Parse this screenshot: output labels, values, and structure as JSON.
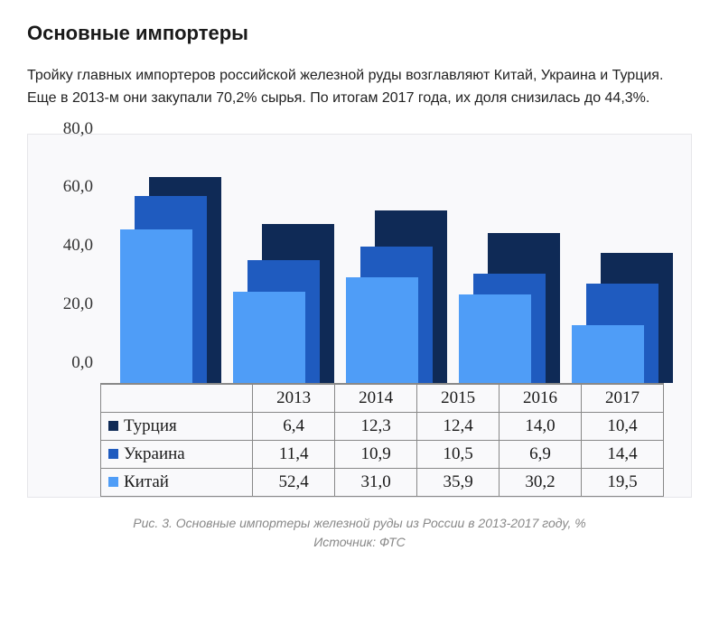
{
  "heading": "Основные импортеры",
  "paragraph": "Тройку главных импортеров российской железной руды возглавляют Китай, Украина и Турция. Еще в 2013-м они закупали 70,2% сырья. По итогам 2017 года, их доля снизилась до 44,3%.",
  "chart": {
    "type": "bar",
    "style": "layered-3d-stacked",
    "background_color": "#f9f9fb",
    "border_color": "#e6e6ea",
    "grid_border_color": "#888888",
    "font_family": "Times New Roman",
    "label_fontsize": 19,
    "ylim": [
      0,
      80
    ],
    "ytick_step": 20,
    "yticks": [
      "0,0",
      "20,0",
      "40,0",
      "60,0",
      "80,0"
    ],
    "categories": [
      "2013",
      "2014",
      "2015",
      "2016",
      "2017"
    ],
    "series": [
      {
        "name": "Турция",
        "color": "#0f2a56",
        "values": [
          6.4,
          12.3,
          12.4,
          14.0,
          10.4
        ],
        "display": [
          "6,4",
          "12,3",
          "12,4",
          "14,0",
          "10,4"
        ]
      },
      {
        "name": "Украина",
        "color": "#1f5bbf",
        "values": [
          11.4,
          10.9,
          10.5,
          6.9,
          14.4
        ],
        "display": [
          "11,4",
          "10,9",
          "10,5",
          "6,9",
          "14,4"
        ]
      },
      {
        "name": "Китай",
        "color": "#4f9df7",
        "values": [
          52.4,
          31.0,
          35.9,
          30.2,
          19.5
        ],
        "display": [
          "52,4",
          "31,0",
          "35,9",
          "30,2",
          "19,5"
        ]
      }
    ]
  },
  "caption_line1": "Рис. 3. Основные импортеры железной руды из России в 2013-2017 году, %",
  "caption_line2": "Источник: ФТС"
}
